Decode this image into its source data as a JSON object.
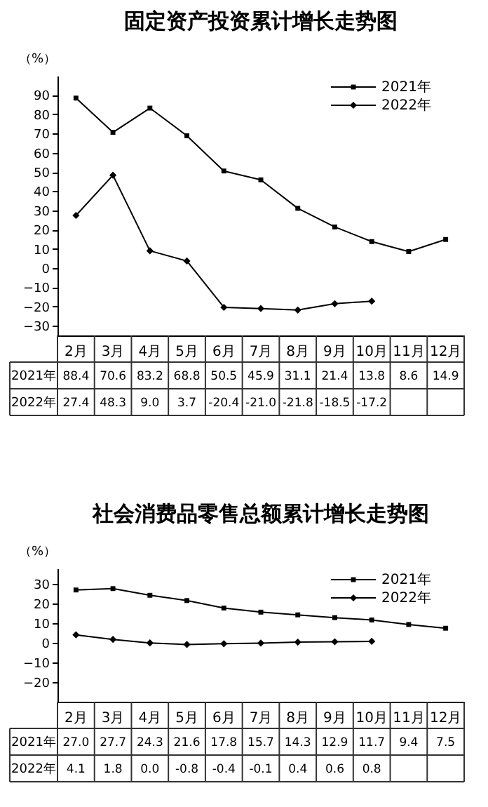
{
  "chart_data": [
    {
      "type": "line",
      "title": "固定资产投资累计增长走势图",
      "ylabel": "（%）",
      "categories": [
        "2月",
        "3月",
        "4月",
        "5月",
        "6月",
        "7月",
        "8月",
        "9月",
        "10月",
        "11月",
        "12月"
      ],
      "ylim": [
        -35,
        100
      ],
      "yticks": [
        -30,
        -20,
        -10,
        0,
        10,
        20,
        30,
        40,
        50,
        60,
        70,
        80,
        90
      ],
      "grid": false,
      "legend": "top right",
      "line_style": "solid",
      "series": [
        {
          "name": "2021年",
          "color": "#000000",
          "marker": "square",
          "values": [
            88.4,
            70.6,
            83.2,
            68.8,
            50.5,
            45.9,
            31.1,
            21.4,
            13.8,
            8.6,
            14.9
          ],
          "value_labels": [
            "88.4",
            "70.6",
            "83.2",
            "68.8",
            "50.5",
            "45.9",
            "31.1",
            "21.4",
            "13.8",
            "8.6",
            "14.9"
          ]
        },
        {
          "name": "2022年",
          "color": "#000000",
          "marker": "diamond",
          "values": [
            27.4,
            48.3,
            9.0,
            3.7,
            -20.4,
            -21.0,
            -21.8,
            -18.5,
            -17.2,
            null,
            null
          ],
          "value_labels": [
            "27.4",
            "48.3",
            "9.0",
            "3.7",
            "-20.4",
            "-21.0",
            "-21.8",
            "-18.5",
            "-17.2",
            null,
            null
          ]
        }
      ]
    },
    {
      "type": "line",
      "title": "社会消费品零售总额累计增长走势图",
      "ylabel": "（%）",
      "categories": [
        "2月",
        "3月",
        "4月",
        "5月",
        "6月",
        "7月",
        "8月",
        "9月",
        "10月",
        "11月",
        "12月"
      ],
      "ylim": [
        -30,
        38
      ],
      "yticks": [
        -20,
        -10,
        0,
        10,
        20,
        30
      ],
      "grid": false,
      "legend": "top right",
      "line_style": "solid",
      "series": [
        {
          "name": "2021年",
          "color": "#000000",
          "marker": "square",
          "values": [
            27.0,
            27.7,
            24.3,
            21.6,
            17.8,
            15.7,
            14.3,
            12.9,
            11.7,
            9.4,
            7.5
          ],
          "value_labels": [
            "27.0",
            "27.7",
            "24.3",
            "21.6",
            "17.8",
            "15.7",
            "14.3",
            "12.9",
            "11.7",
            "9.4",
            "7.5"
          ]
        },
        {
          "name": "2022年",
          "color": "#000000",
          "marker": "diamond",
          "values": [
            4.1,
            1.8,
            0.0,
            -0.8,
            -0.4,
            -0.1,
            0.4,
            0.6,
            0.8,
            null,
            null
          ],
          "value_labels": [
            "4.1",
            "1.8",
            "0.0",
            "-0.8",
            "-0.4",
            "-0.1",
            "0.4",
            "0.6",
            "0.8",
            null,
            null
          ]
        }
      ]
    }
  ]
}
